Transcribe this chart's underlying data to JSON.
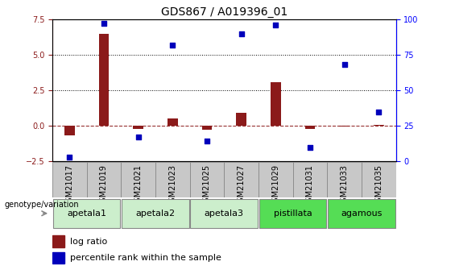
{
  "title": "GDS867 / A019396_01",
  "samples": [
    "GSM21017",
    "GSM21019",
    "GSM21021",
    "GSM21023",
    "GSM21025",
    "GSM21027",
    "GSM21029",
    "GSM21031",
    "GSM21033",
    "GSM21035"
  ],
  "log_ratio": [
    -0.7,
    6.5,
    -0.2,
    0.5,
    -0.25,
    0.9,
    3.1,
    -0.2,
    -0.05,
    0.05
  ],
  "percentile_rank": [
    3,
    97,
    17,
    82,
    14,
    90,
    96,
    10,
    68,
    35
  ],
  "ylim_left": [
    -2.5,
    7.5
  ],
  "ylim_right": [
    0,
    100
  ],
  "yticks_left": [
    -2.5,
    0,
    2.5,
    5,
    7.5
  ],
  "yticks_right": [
    0,
    25,
    50,
    75,
    100
  ],
  "hlines_dotted": [
    2.5,
    5.0
  ],
  "hline_dashed": 0.0,
  "bar_color": "#8B1A1A",
  "dot_color": "#0000BB",
  "groups": [
    {
      "name": "apetala1",
      "samples": [
        0,
        1
      ],
      "color": "#cceecc"
    },
    {
      "name": "apetala2",
      "samples": [
        2,
        3
      ],
      "color": "#cceecc"
    },
    {
      "name": "apetala3",
      "samples": [
        4,
        5
      ],
      "color": "#cceecc"
    },
    {
      "name": "pistillata",
      "samples": [
        6,
        7
      ],
      "color": "#55dd55"
    },
    {
      "name": "agamous",
      "samples": [
        8,
        9
      ],
      "color": "#55dd55"
    }
  ],
  "legend_bar_label": "log ratio",
  "legend_dot_label": "percentile rank within the sample",
  "genotype_label": "genotype/variation",
  "background_color": "#ffffff",
  "plot_bg_color": "#ffffff",
  "title_fontsize": 10,
  "tick_fontsize": 7,
  "group_fontsize": 8,
  "sample_label_fontsize": 7,
  "legend_fontsize": 8,
  "bar_width": 0.3
}
